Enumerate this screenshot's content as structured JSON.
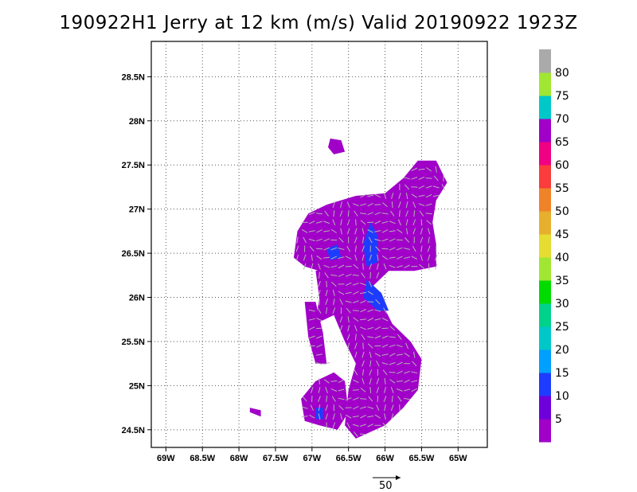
{
  "title": "190922H1 Jerry at 12 km (m/s) Valid 20190922 1923Z",
  "map": {
    "lon_range": [
      -69.2,
      -64.6
    ],
    "lat_range": [
      24.3,
      28.9
    ],
    "lon_ticks": [
      {
        "value": -69.0,
        "label": "69W"
      },
      {
        "value": -68.5,
        "label": "68.5W"
      },
      {
        "value": -68.0,
        "label": "68W"
      },
      {
        "value": -67.5,
        "label": "67.5W"
      },
      {
        "value": -67.0,
        "label": "67W"
      },
      {
        "value": -66.5,
        "label": "66.5W"
      },
      {
        "value": -66.0,
        "label": "66W"
      },
      {
        "value": -65.5,
        "label": "65.5W"
      },
      {
        "value": -65.0,
        "label": "65W"
      }
    ],
    "lat_ticks": [
      {
        "value": 24.5,
        "label": "24.5N"
      },
      {
        "value": 25.0,
        "label": "25N"
      },
      {
        "value": 25.5,
        "label": "25.5N"
      },
      {
        "value": 26.0,
        "label": "26N"
      },
      {
        "value": 26.5,
        "label": "26.5N"
      },
      {
        "value": 27.0,
        "label": "27N"
      },
      {
        "value": 27.5,
        "label": "27.5N"
      },
      {
        "value": 28.0,
        "label": "28N"
      },
      {
        "value": 28.5,
        "label": "28.5N"
      }
    ],
    "grid": true,
    "grid_style": "dotted"
  },
  "colorbar": {
    "colors": [
      "#a000c8",
      "#6e00dc",
      "#1e3cff",
      "#00a0ff",
      "#00c8c8",
      "#00d28c",
      "#00dc00",
      "#a0e632",
      "#e6dc32",
      "#e6af2d",
      "#f08228",
      "#fa3c3c",
      "#f00082",
      "#a000c8",
      "#00c8c8",
      "#a0e632",
      "#aaaaaa"
    ],
    "labels": [
      "5",
      "10",
      "15",
      "20",
      "25",
      "30",
      "35",
      "40",
      "45",
      "50",
      "55",
      "60",
      "65",
      "70",
      "75",
      "80"
    ]
  },
  "reference_vector": {
    "label": "50"
  },
  "wind_field": {
    "colors": {
      "dominant": "#a000c8",
      "secondary": "#6e00dc",
      "strong": "#1e3cff",
      "arrow": "#b4b4b4"
    }
  }
}
